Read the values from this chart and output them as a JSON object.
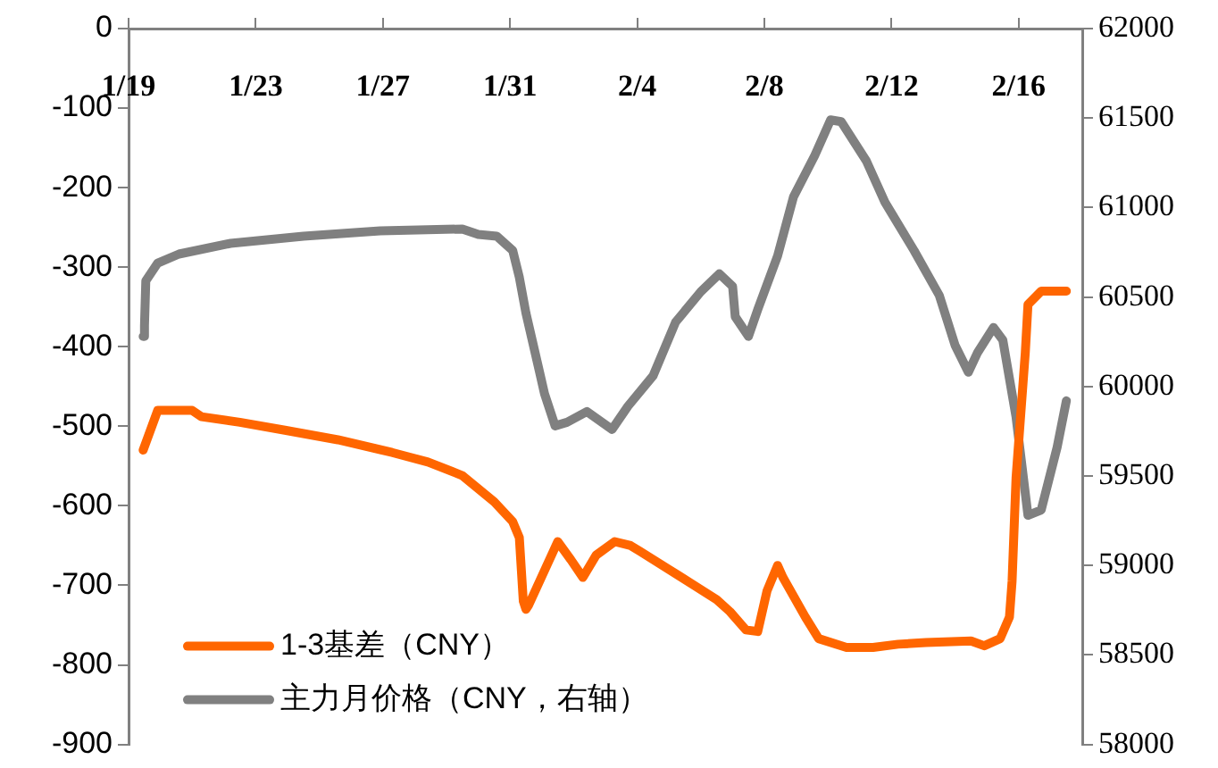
{
  "chart_data": {
    "type": "line",
    "xlim": [
      "--01-19",
      "--02-18"
    ],
    "xticks": [
      {
        "value": "--01-19",
        "label": "1/19"
      },
      {
        "value": "--01-23",
        "label": "1/23"
      },
      {
        "value": "--01-27",
        "label": "1/27"
      },
      {
        "value": "--01-31",
        "label": "1/31"
      },
      {
        "value": "--02-04",
        "label": "2/4"
      },
      {
        "value": "--02-08",
        "label": "2/8"
      },
      {
        "value": "--02-12",
        "label": "2/12"
      },
      {
        "value": "--02-16",
        "label": "2/16"
      }
    ],
    "ylim": [
      -900,
      0
    ],
    "yticks": [
      0,
      -100,
      -200,
      -300,
      -400,
      -500,
      -600,
      -700,
      -800,
      -900
    ],
    "y2lim": [
      58000,
      62000
    ],
    "y2ticks": [
      58000,
      58500,
      59000,
      59500,
      60000,
      60500,
      61000,
      61500,
      62000
    ],
    "grid": false,
    "legend": "bottom left",
    "marker": "none",
    "line_style": "solid",
    "series": [
      {
        "name": "1-3基差（CNY）",
        "color": "#ff6600",
        "x": [
          "--01-19T11:00",
          "--01-19T22:00",
          "--01-20T07:00",
          "--01-21T00:00",
          "--01-21T07:00",
          "--01-22T12:00",
          "--01-23T22:00",
          "--01-25T14:00",
          "--01-27T07:00",
          "--01-28T10:00",
          "--01-29T12:00",
          "--01-30T12:00",
          "--01-31T02:00",
          "--01-31T07:00",
          "--01-31T10:00",
          "--01-31T12:00",
          "--01-31T14:00",
          "--02-01T12:00",
          "--02-01T22:00",
          "--02-02T07:00",
          "--02-02T17:00",
          "--02-03T07:00",
          "--02-03T19:00",
          "--02-04T02:00",
          "--02-05T00:00",
          "--02-05T19:00",
          "--02-06T12:00",
          "--02-06T22:00",
          "--02-07T10:00",
          "--02-07T19:00",
          "--02-08T02:00",
          "--02-08T10:00",
          "--02-08T14:00",
          "--02-09T07:00",
          "--02-09T17:00",
          "--02-10T14:00",
          "--02-11T10:00",
          "--02-12T05:00",
          "--02-13T02:00",
          "--02-14T12:00",
          "--02-14T22:00",
          "--02-15T10:00",
          "--02-15T17:00",
          "--02-15T19:00",
          "--02-15T22:00",
          "--02-16T05:00",
          "--02-16T07:00",
          "--02-16T17:00",
          "--02-17T12:00"
        ],
        "values": [
          -530,
          -480,
          -480,
          -480,
          -488,
          -495,
          -505,
          -517,
          -533,
          -545,
          -562,
          -595,
          -620,
          -640,
          -720,
          -730,
          -725,
          -645,
          -668,
          -690,
          -662,
          -645,
          -650,
          -657,
          -680,
          -700,
          -718,
          -733,
          -756,
          -758,
          -707,
          -675,
          -690,
          -740,
          -767,
          -778,
          -778,
          -774,
          -772,
          -770,
          -776,
          -767,
          -740,
          -695,
          -565,
          -407,
          -347,
          -330,
          -330
        ]
      },
      {
        "name": "主力月价格（CNY，右轴）",
        "color": "#808080",
        "axis": "y2",
        "x": [
          "--01-19T11:00",
          "--01-19T12:00",
          "--01-19T13:00",
          "--01-19T22:00",
          "--01-20T14:00",
          "--01-22T05:00",
          "--01-24T12:00",
          "--01-26T22:00",
          "--01-29T12:00",
          "--01-30T00:00",
          "--01-30T14:00",
          "--01-31T02:00",
          "--01-31T07:00",
          "--01-31T12:00",
          "--01-31T22:00",
          "--02-01T02:00",
          "--02-01T10:00",
          "--02-01T19:00",
          "--02-02T10:00",
          "--02-03T05:00",
          "--02-03T17:00",
          "--02-04T12:00",
          "--02-05T05:00",
          "--02-06T00:00",
          "--02-06T14:00",
          "--02-07T00:00",
          "--02-07T02:00",
          "--02-07T12:00",
          "--02-07T19:00",
          "--02-08T10:00",
          "--02-08T22:00",
          "--02-09T14:00",
          "--02-10T02:00",
          "--02-10T10:00",
          "--02-11T05:00",
          "--02-11T19:00",
          "--02-12T17:00",
          "--02-13T12:00",
          "--02-14T00:00",
          "--02-14T10:00",
          "--02-14T17:00",
          "--02-15T05:00",
          "--02-15T12:00",
          "--02-15T22:00",
          "--02-16T07:00",
          "--02-16T17:00",
          "--02-17T05:00",
          "--02-17T12:00"
        ],
        "values": [
          60280,
          60340,
          60590,
          60690,
          60740,
          60800,
          60840,
          60870,
          60880,
          60850,
          60840,
          60760,
          60610,
          60410,
          60090,
          59960,
          59780,
          59800,
          59860,
          59760,
          59890,
          60060,
          60360,
          60530,
          60630,
          60560,
          60390,
          60280,
          60430,
          60730,
          61060,
          61290,
          61490,
          61480,
          61260,
          61030,
          60760,
          60510,
          60230,
          60080,
          60190,
          60330,
          60260,
          59830,
          59280,
          59310,
          59660,
          59920
        ]
      }
    ]
  }
}
